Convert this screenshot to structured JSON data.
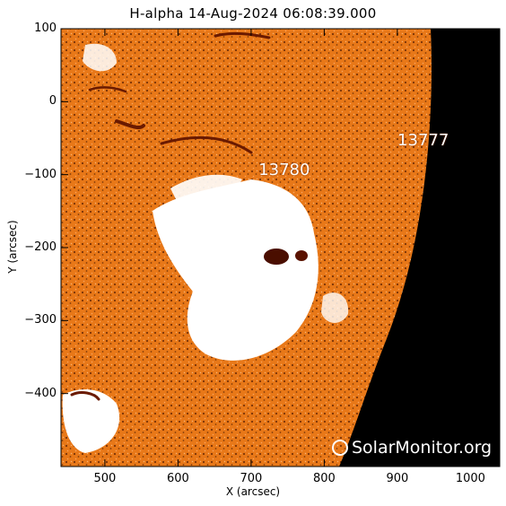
{
  "figure": {
    "title": "H-alpha 14-Aug-2024 06:08:39.000",
    "xlabel": "X (arcsec)",
    "ylabel": "Y (arcsec)",
    "xlim": [
      440,
      1040
    ],
    "ylim": [
      -500,
      100
    ],
    "x_ticks": [
      "500",
      "600",
      "700",
      "800",
      "900",
      "1000"
    ],
    "y_ticks": [
      "100",
      "0",
      "−100",
      "−200",
      "−300",
      "−400"
    ],
    "watermark": "SolarMonitor.org",
    "colors": {
      "chromosphere": "#e87818",
      "plage": "#ffffff",
      "filament": "#6a1a00",
      "space": "#000000"
    },
    "active_regions": [
      {
        "label": "13777",
        "x": 910,
        "y": -55
      },
      {
        "label": "13780",
        "x": 720,
        "y": -95
      }
    ]
  }
}
